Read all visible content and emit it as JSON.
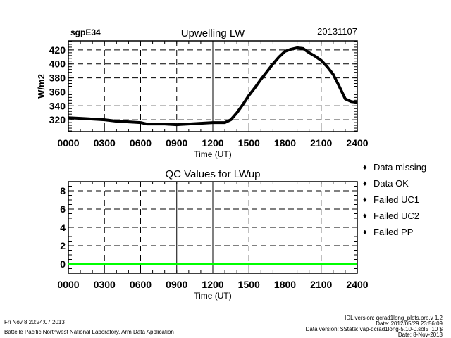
{
  "chart_data": [
    {
      "type": "line",
      "title": "Upwelling LW",
      "site": "sgpE34",
      "date": "20131107",
      "xlabel": "Time (UT)",
      "ylabel": "W/m2",
      "xlim": [
        0,
        24
      ],
      "ylim": [
        303,
        433
      ],
      "x_ticks": [
        0,
        3,
        6,
        9,
        12,
        15,
        18,
        21,
        24
      ],
      "x_tick_labels": [
        "0000",
        "0300",
        "0600",
        "0900",
        "1200",
        "1500",
        "1800",
        "2100",
        "2400"
      ],
      "y_ticks": [
        320,
        340,
        360,
        380,
        400,
        420
      ],
      "y_tick_labels": [
        "320",
        "340",
        "360",
        "380",
        "400",
        "420"
      ],
      "grid": true,
      "series": [
        {
          "name": "Upwelling LW",
          "color": "#000000",
          "x": [
            0,
            1,
            2,
            3,
            4,
            5,
            6,
            6.5,
            7,
            8,
            9,
            10,
            11,
            12,
            13,
            13.5,
            14,
            14.5,
            15,
            15.5,
            16,
            16.5,
            17,
            17.5,
            18,
            18.5,
            19,
            19.5,
            20,
            20.5,
            21,
            21.5,
            22,
            22.5,
            23,
            23.5,
            24
          ],
          "y": [
            323,
            322,
            321,
            320,
            318,
            317,
            316,
            314,
            314,
            314,
            313,
            314,
            315,
            316,
            316,
            320,
            330,
            342,
            355,
            366,
            378,
            389,
            400,
            410,
            418,
            421,
            423,
            422,
            416,
            411,
            405,
            396,
            385,
            368,
            350,
            346,
            345
          ]
        }
      ]
    },
    {
      "type": "line",
      "title": "QC Values for LWup",
      "xlabel": "Time (UT)",
      "ylabel": "",
      "xlim": [
        0,
        24
      ],
      "ylim": [
        -1,
        9
      ],
      "x_ticks": [
        0,
        3,
        6,
        9,
        12,
        15,
        18,
        21,
        24
      ],
      "x_tick_labels": [
        "0000",
        "0300",
        "0600",
        "0900",
        "1200",
        "1500",
        "1800",
        "2100",
        "2400"
      ],
      "y_ticks": [
        0,
        2,
        4,
        6,
        8
      ],
      "y_tick_labels": [
        "0",
        "2",
        "4",
        "6",
        "8"
      ],
      "grid": true,
      "series": [
        {
          "name": "Data OK",
          "color": "#00ff00",
          "x": [
            0,
            24
          ],
          "y": [
            0,
            0
          ]
        }
      ],
      "legend": [
        {
          "label": "Data missing",
          "color": "#000000"
        },
        {
          "label": "Data OK",
          "color": "#00ff00"
        },
        {
          "label": "Failed UC1",
          "color": "#ffff00"
        },
        {
          "label": "Failed UC2",
          "color": "#ff9900"
        },
        {
          "label": "Failed PP",
          "color": "#ff0000"
        }
      ],
      "legend_placement": "right"
    }
  ],
  "footer": {
    "timestamp": "Fri Nov  8 20:24:07 2013",
    "institution": "Battelle Pacific Northwest National Laboratory, Arm Data Application",
    "idl_version": "IDL version: qcrad1long_plots.pro,v 1.2",
    "idl_date": "Date: 2012/05/29 23:56:09",
    "data_version": "Data version: $State: vap-qcrad1long-5.10-0.sol5_10 $",
    "data_date": "Date: 8-Nov-2013"
  }
}
